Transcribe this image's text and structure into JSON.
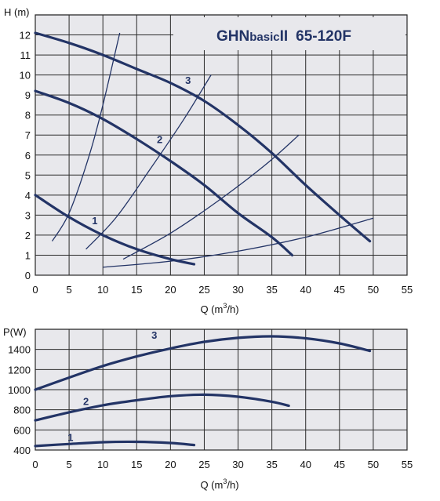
{
  "chart_data": [
    {
      "type": "line",
      "title": "GHNbasicII 65-120F",
      "title_parts": {
        "a": "GHN",
        "b": "basic",
        "c": "II",
        "d": "65-120F"
      },
      "ylabel": "H (m)",
      "xlabel": "Q (m³/h)",
      "xlabel_parts": {
        "a": "Q (m",
        "sup": "3",
        "b": "/h)"
      },
      "xlim": [
        0,
        55
      ],
      "ylim": [
        0,
        13
      ],
      "x_ticks": [
        0,
        5,
        10,
        15,
        20,
        25,
        30,
        35,
        40,
        45,
        50,
        55
      ],
      "y_ticks": [
        0,
        1,
        2,
        3,
        4,
        5,
        6,
        7,
        8,
        9,
        10,
        11,
        12
      ],
      "grid": true,
      "series": [
        {
          "name": "1",
          "x": [
            0,
            5,
            10,
            15,
            20,
            23.5
          ],
          "y": [
            4.0,
            2.9,
            2.0,
            1.3,
            0.8,
            0.55
          ]
        },
        {
          "name": "2",
          "x": [
            0,
            5,
            10,
            15,
            20,
            25,
            30,
            35,
            38
          ],
          "y": [
            9.2,
            8.6,
            7.8,
            6.8,
            5.7,
            4.5,
            3.1,
            1.9,
            1.0
          ]
        },
        {
          "name": "3",
          "x": [
            0,
            5,
            10,
            15,
            20,
            25,
            30,
            35,
            40,
            45,
            49.5
          ],
          "y": [
            12.1,
            11.6,
            11.0,
            10.3,
            9.6,
            8.7,
            7.5,
            6.1,
            4.5,
            3.0,
            1.7
          ]
        }
      ],
      "system_curves": [
        {
          "x": [
            2.5,
            5,
            8,
            10,
            12.5
          ],
          "y": [
            1.7,
            3.1,
            6.0,
            8.5,
            12.1
          ]
        },
        {
          "x": [
            7.5,
            12,
            17,
            22,
            26
          ],
          "y": [
            1.3,
            2.9,
            5.3,
            7.8,
            10.0
          ]
        },
        {
          "x": [
            13,
            20,
            27,
            34,
            39
          ],
          "y": [
            0.8,
            2.1,
            3.7,
            5.5,
            7.0
          ]
        },
        {
          "x": [
            10,
            20,
            30,
            40,
            50
          ],
          "y": [
            0.4,
            0.7,
            1.2,
            1.9,
            2.85
          ]
        }
      ]
    },
    {
      "type": "line",
      "ylabel": "P(W)",
      "xlabel": "Q (m³/h)",
      "xlabel_parts": {
        "a": "Q (m",
        "sup": "3",
        "b": "/h)"
      },
      "xlim": [
        0,
        55
      ],
      "ylim": [
        400,
        1600
      ],
      "x_ticks": [
        0,
        5,
        10,
        15,
        20,
        25,
        30,
        35,
        40,
        45,
        50,
        55
      ],
      "y_ticks": [
        400,
        600,
        800,
        1000,
        1200,
        1400
      ],
      "grid": true,
      "series": [
        {
          "name": "1",
          "x": [
            0,
            5,
            10,
            15,
            20,
            23.5
          ],
          "y": [
            440,
            460,
            478,
            482,
            470,
            450
          ]
        },
        {
          "name": "2",
          "x": [
            0,
            5,
            10,
            15,
            20,
            25,
            30,
            35,
            37.5
          ],
          "y": [
            695,
            775,
            845,
            895,
            935,
            950,
            930,
            880,
            840
          ]
        },
        {
          "name": "3",
          "x": [
            0,
            5,
            10,
            15,
            20,
            25,
            30,
            35,
            40,
            45,
            49.5
          ],
          "y": [
            1000,
            1120,
            1235,
            1330,
            1410,
            1475,
            1515,
            1530,
            1510,
            1460,
            1385
          ]
        }
      ]
    }
  ]
}
